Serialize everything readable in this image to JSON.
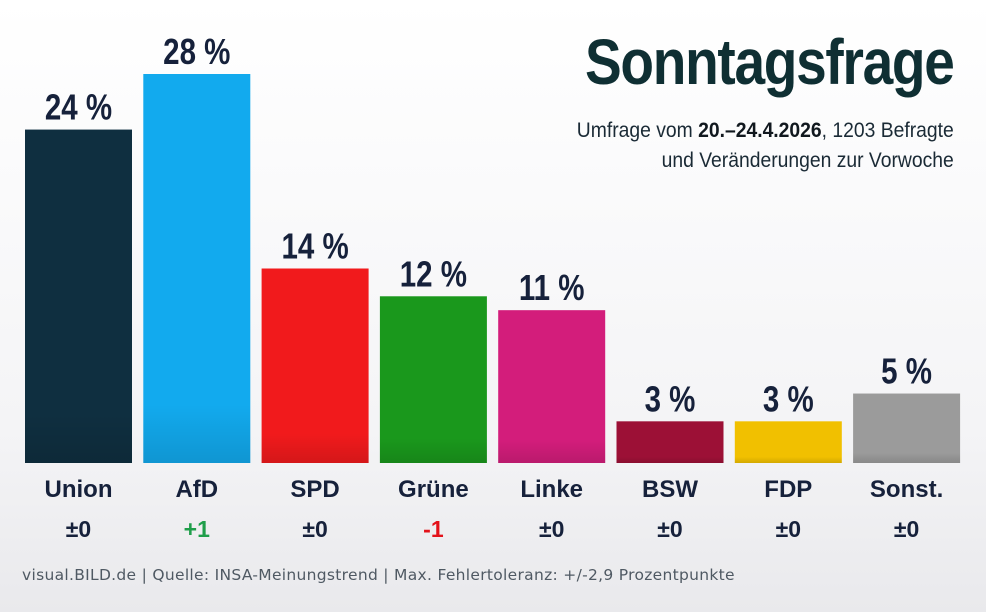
{
  "title": "Sonntagsfrage",
  "subtitle": {
    "line1_prefix": "Umfrage vom ",
    "line1_date": "20.–24.4.2026",
    "line1_suffix": ", 1203 Befragte",
    "line2": "und Veränderungen zur Vorwoche"
  },
  "footer": "visual.BILD.de | Quelle: INSA-Meinungstrend | Max. Fehlertoleranz: +/-2,9 Prozentpunkte",
  "colors": {
    "Union": "#0f2f40",
    "AfD": "#12aaee",
    "SPD": "#f11a1c",
    "Grüne": "#1a981c",
    "Linke": "#d31d7b",
    "BSW": "#9c1036",
    "FDP": "#f1c000",
    "Sonst.": "#9b9b9b",
    "value_label": "#16213b",
    "party_label": "#16213b",
    "change_neutral": "#16213b",
    "change_positive": "#1f9e4a",
    "change_negative": "#e3121a"
  },
  "chart_data": {
    "type": "bar",
    "title": "Sonntagsfrage",
    "categories": [
      "Union",
      "AfD",
      "SPD",
      "Grüne",
      "Linke",
      "BSW",
      "FDP",
      "Sonst."
    ],
    "values": [
      24,
      28,
      14,
      12,
      11,
      3,
      3,
      5
    ],
    "value_labels": [
      "24 %",
      "28 %",
      "14 %",
      "12 %",
      "11 %",
      "3 %",
      "3 %",
      "5 %"
    ],
    "changes": [
      "±0",
      "+1",
      "±0",
      "-1",
      "±0",
      "±0",
      "±0",
      "±0"
    ],
    "unit": "%",
    "xlabel": "",
    "ylabel": "",
    "ylim": [
      0,
      28
    ],
    "grid": false,
    "legend": "none"
  }
}
